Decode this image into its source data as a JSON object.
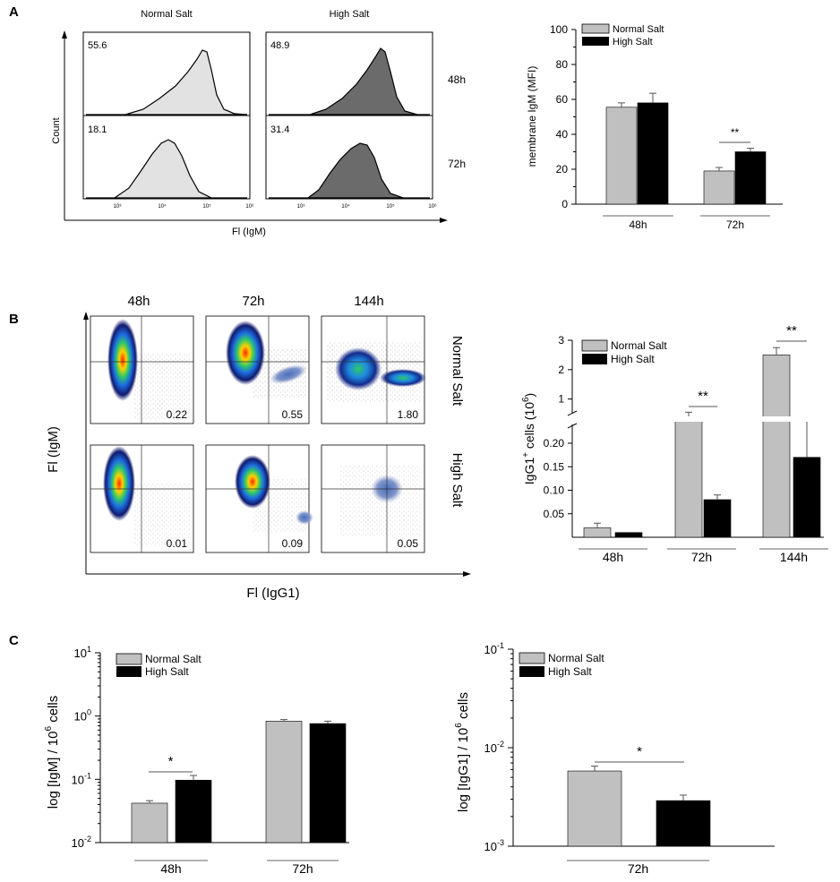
{
  "panels": {
    "a": "A",
    "b": "B",
    "c": "C"
  },
  "colors": {
    "normal": "#c0c0c0",
    "high": "#000000",
    "hist_normal": "#e2e2e2",
    "hist_high": "#6b6b6b"
  },
  "panel_a": {
    "columns": [
      "Normal Salt",
      "High Salt"
    ],
    "rows": [
      "48h",
      "72h"
    ],
    "y_label": "Count",
    "x_label": "Fl (IgM)",
    "x_ticks": [
      "10³",
      "10⁴",
      "10⁵",
      "10⁶"
    ],
    "values": {
      "normal_48h": "55.6",
      "high_48h": "48.9",
      "normal_72h": "18.1",
      "high_72h": "31.4"
    }
  },
  "panel_b": {
    "columns": [
      "48h",
      "72h",
      "144h"
    ],
    "rows": [
      "Normal Salt",
      "High Salt"
    ],
    "y_label": "Fl (IgM)",
    "x_label": "Fl (IgG1)",
    "values": {
      "n_48h": "0.22",
      "n_72h": "0.55",
      "n_144h": "1.80",
      "h_48h": "0.01",
      "h_72h": "0.09",
      "h_144h": "0.05"
    }
  },
  "chart_data": [
    {
      "type": "bar",
      "title": "",
      "ylabel": "membrane IgM (MFI)",
      "xlabel": "",
      "categories": [
        "48h",
        "72h"
      ],
      "series": [
        {
          "name": "Normal Salt",
          "values": [
            55.5,
            19
          ],
          "errors": [
            2.5,
            2
          ]
        },
        {
          "name": "High Salt",
          "values": [
            58,
            30
          ],
          "errors": [
            5.5,
            2
          ]
        }
      ],
      "ylim": [
        0,
        100
      ],
      "yticks": [
        "0",
        "20",
        "40",
        "60",
        "80",
        "100"
      ],
      "significance": [
        "",
        "**"
      ],
      "legend": [
        "Normal Salt",
        "High Salt"
      ]
    },
    {
      "type": "bar",
      "title": "",
      "ylabel": "IgG1⁺ cells (10⁶)",
      "ylabel_parts": {
        "main": "IgG1",
        "sup": "+",
        "mid": " cells (10",
        "sup2": "6",
        "end": ")"
      },
      "xlabel": "",
      "categories": [
        "48h",
        "72h",
        "144h"
      ],
      "series": [
        {
          "name": "Normal Salt",
          "values": [
            0.02,
            0.45,
            2.5
          ],
          "errors": [
            0.01,
            0.1,
            0.25
          ]
        },
        {
          "name": "High Salt",
          "values": [
            0.01,
            0.08,
            0.17
          ],
          "errors": [
            0.0,
            0.01,
            0.07
          ]
        }
      ],
      "axis_break": true,
      "ylim_lower": [
        0,
        0.24
      ],
      "ylim_upper": [
        0.5,
        3
      ],
      "yticks_lower": [
        "0.05",
        "0.10",
        "0.15",
        "0.20"
      ],
      "yticks_upper": [
        "1",
        "2",
        "3"
      ],
      "significance": [
        "",
        "**",
        "**"
      ],
      "legend": [
        "Normal Salt",
        "High Salt"
      ]
    },
    {
      "type": "bar",
      "scale": "log",
      "title": "",
      "ylabel": "log [IgM] / 10⁶ cells",
      "ylabel_parts": {
        "main": "log [IgM] / 10",
        "sup": "6",
        "end": " cells"
      },
      "xlabel": "",
      "categories": [
        "48h",
        "72h"
      ],
      "series": [
        {
          "name": "Normal Salt",
          "values": [
            0.042,
            0.83
          ],
          "err_hi": [
            0.046,
            0.88
          ]
        },
        {
          "name": "High Salt",
          "values": [
            0.097,
            0.76
          ],
          "err_hi": [
            0.115,
            0.83
          ]
        }
      ],
      "ylim": [
        0.01,
        10
      ],
      "yticks": [
        {
          "base": "10",
          "exp": "-2"
        },
        {
          "base": "10",
          "exp": "-1"
        },
        {
          "base": "10",
          "exp": "0"
        },
        {
          "base": "10",
          "exp": "1"
        }
      ],
      "significance": [
        "*",
        ""
      ],
      "legend": [
        "Normal Salt",
        "High Salt"
      ]
    },
    {
      "type": "bar",
      "scale": "log",
      "title": "",
      "ylabel": "log [IgG1] / 10⁶ cells",
      "ylabel_parts": {
        "main": "log [IgG1] / 10",
        "sup": "6",
        "end": " cells"
      },
      "xlabel": "",
      "categories": [
        "72h"
      ],
      "series": [
        {
          "name": "Normal Salt",
          "values": [
            0.0058
          ],
          "err_hi": [
            0.0065
          ]
        },
        {
          "name": "High Salt",
          "values": [
            0.0029
          ],
          "err_hi": [
            0.0033
          ]
        }
      ],
      "ylim": [
        0.001,
        0.1
      ],
      "yticks": [
        {
          "base": "10",
          "exp": "-3"
        },
        {
          "base": "10",
          "exp": "-2"
        },
        {
          "base": "10",
          "exp": "-1"
        }
      ],
      "significance": [
        "*"
      ],
      "legend": [
        "Normal Salt",
        "High Salt"
      ]
    }
  ]
}
